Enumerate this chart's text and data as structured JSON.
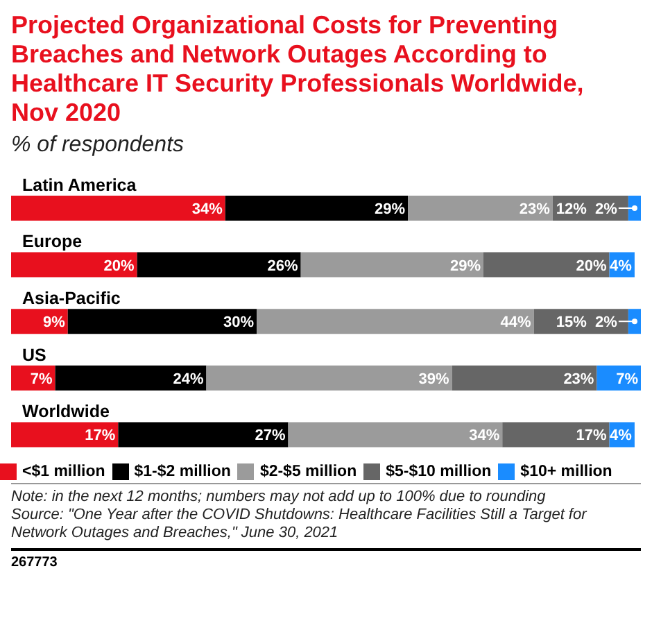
{
  "chart_data": {
    "type": "bar",
    "orientation": "horizontal",
    "stacked": true,
    "title": "Projected Organizational Costs for Preventing Breaches and Network Outages According to Healthcare IT Security Professionals Worldwide, Nov 2020",
    "subtitle": "% of respondents",
    "categories": [
      "Latin America",
      "Europe",
      "Asia-Pacific",
      "US",
      "Worldwide"
    ],
    "series": [
      {
        "name": "<$1 million",
        "color": "#e8101e",
        "values": [
          34,
          20,
          9,
          7,
          17
        ],
        "value_labels": [
          "34%",
          "20%",
          "9%",
          "7%",
          "17%"
        ]
      },
      {
        "name": "$1-$2 million",
        "color": "#000000",
        "values": [
          29,
          26,
          30,
          24,
          27
        ],
        "value_labels": [
          "29%",
          "26%",
          "30%",
          "24%",
          "27%"
        ]
      },
      {
        "name": "$2-$5 million",
        "color": "#9b9b9b",
        "values": [
          23,
          29,
          44,
          39,
          34
        ],
        "value_labels": [
          "23%",
          "29%",
          "44%",
          "39%",
          "34%"
        ]
      },
      {
        "name": "$5-$10 million",
        "color": "#666666",
        "values": [
          12,
          20,
          15,
          23,
          17
        ],
        "value_labels": [
          "12%",
          "20%",
          "15%",
          "23%",
          "17%"
        ]
      },
      {
        "name": "$10+ million",
        "color": "#1a8cff",
        "values": [
          2,
          4,
          2,
          7,
          4
        ],
        "value_labels": [
          "2%",
          "4%",
          "2%",
          "7%",
          "4%"
        ]
      }
    ],
    "legend": "bottom",
    "annotations": [
      "Note: in the next 12 months; numbers may not add up to 100% due to rounding",
      "Source: \"One Year after the COVID Shutdowns: Healthcare Facilities Still a Target for Network Outages and Breaches,\" June 30, 2021",
      "267773"
    ]
  }
}
